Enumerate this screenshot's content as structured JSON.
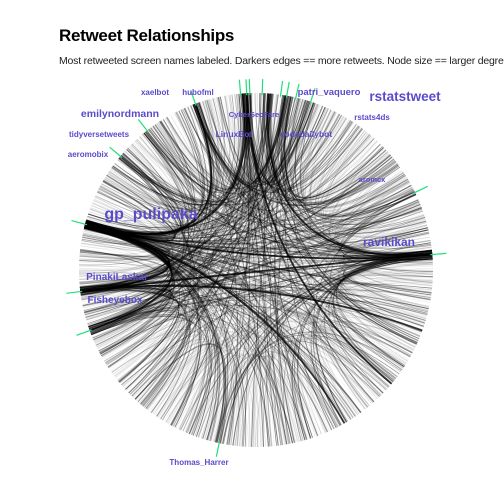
{
  "title": "Retweet Relationships",
  "subtitle": "Most retweeted screen names labeled. Darkers edges == more retweets. Node size == larger degree",
  "colors": {
    "label": "#5a4bc9",
    "edge": "#000000",
    "node_edge": "#1fe07a"
  },
  "labels": [
    {
      "id": "xaelbot",
      "text": "xaelbot"
    },
    {
      "id": "hubofml",
      "text": "hubofml"
    },
    {
      "id": "patri_vaquero",
      "text": "patri_vaquero"
    },
    {
      "id": "rstatstweet",
      "text": "rstatstweet"
    },
    {
      "id": "emilynordmann",
      "text": "emilynordmann"
    },
    {
      "id": "cybersecfare",
      "text": "CyberSecFare"
    },
    {
      "id": "rstats4ds",
      "text": "rstats4ds"
    },
    {
      "id": "linuxbot",
      "text": "LinuxBot"
    },
    {
      "id": "codedailybot",
      "text": "codedailybot"
    },
    {
      "id": "tidyversetweets",
      "text": "tidyversetweets"
    },
    {
      "id": "aeromobix",
      "text": "aeromobix"
    },
    {
      "id": "aromcx",
      "text": "aromcx"
    },
    {
      "id": "gp_pulipaka",
      "text": "gp_pulipaka"
    },
    {
      "id": "ravikikan",
      "text": "ravikikan"
    },
    {
      "id": "pinakilaskar",
      "text": "PinakiLaskar"
    },
    {
      "id": "fisheyebox",
      "text": "Fisheyebox"
    },
    {
      "id": "thomas_harrer",
      "text": "Thomas_Harrer"
    }
  ]
}
